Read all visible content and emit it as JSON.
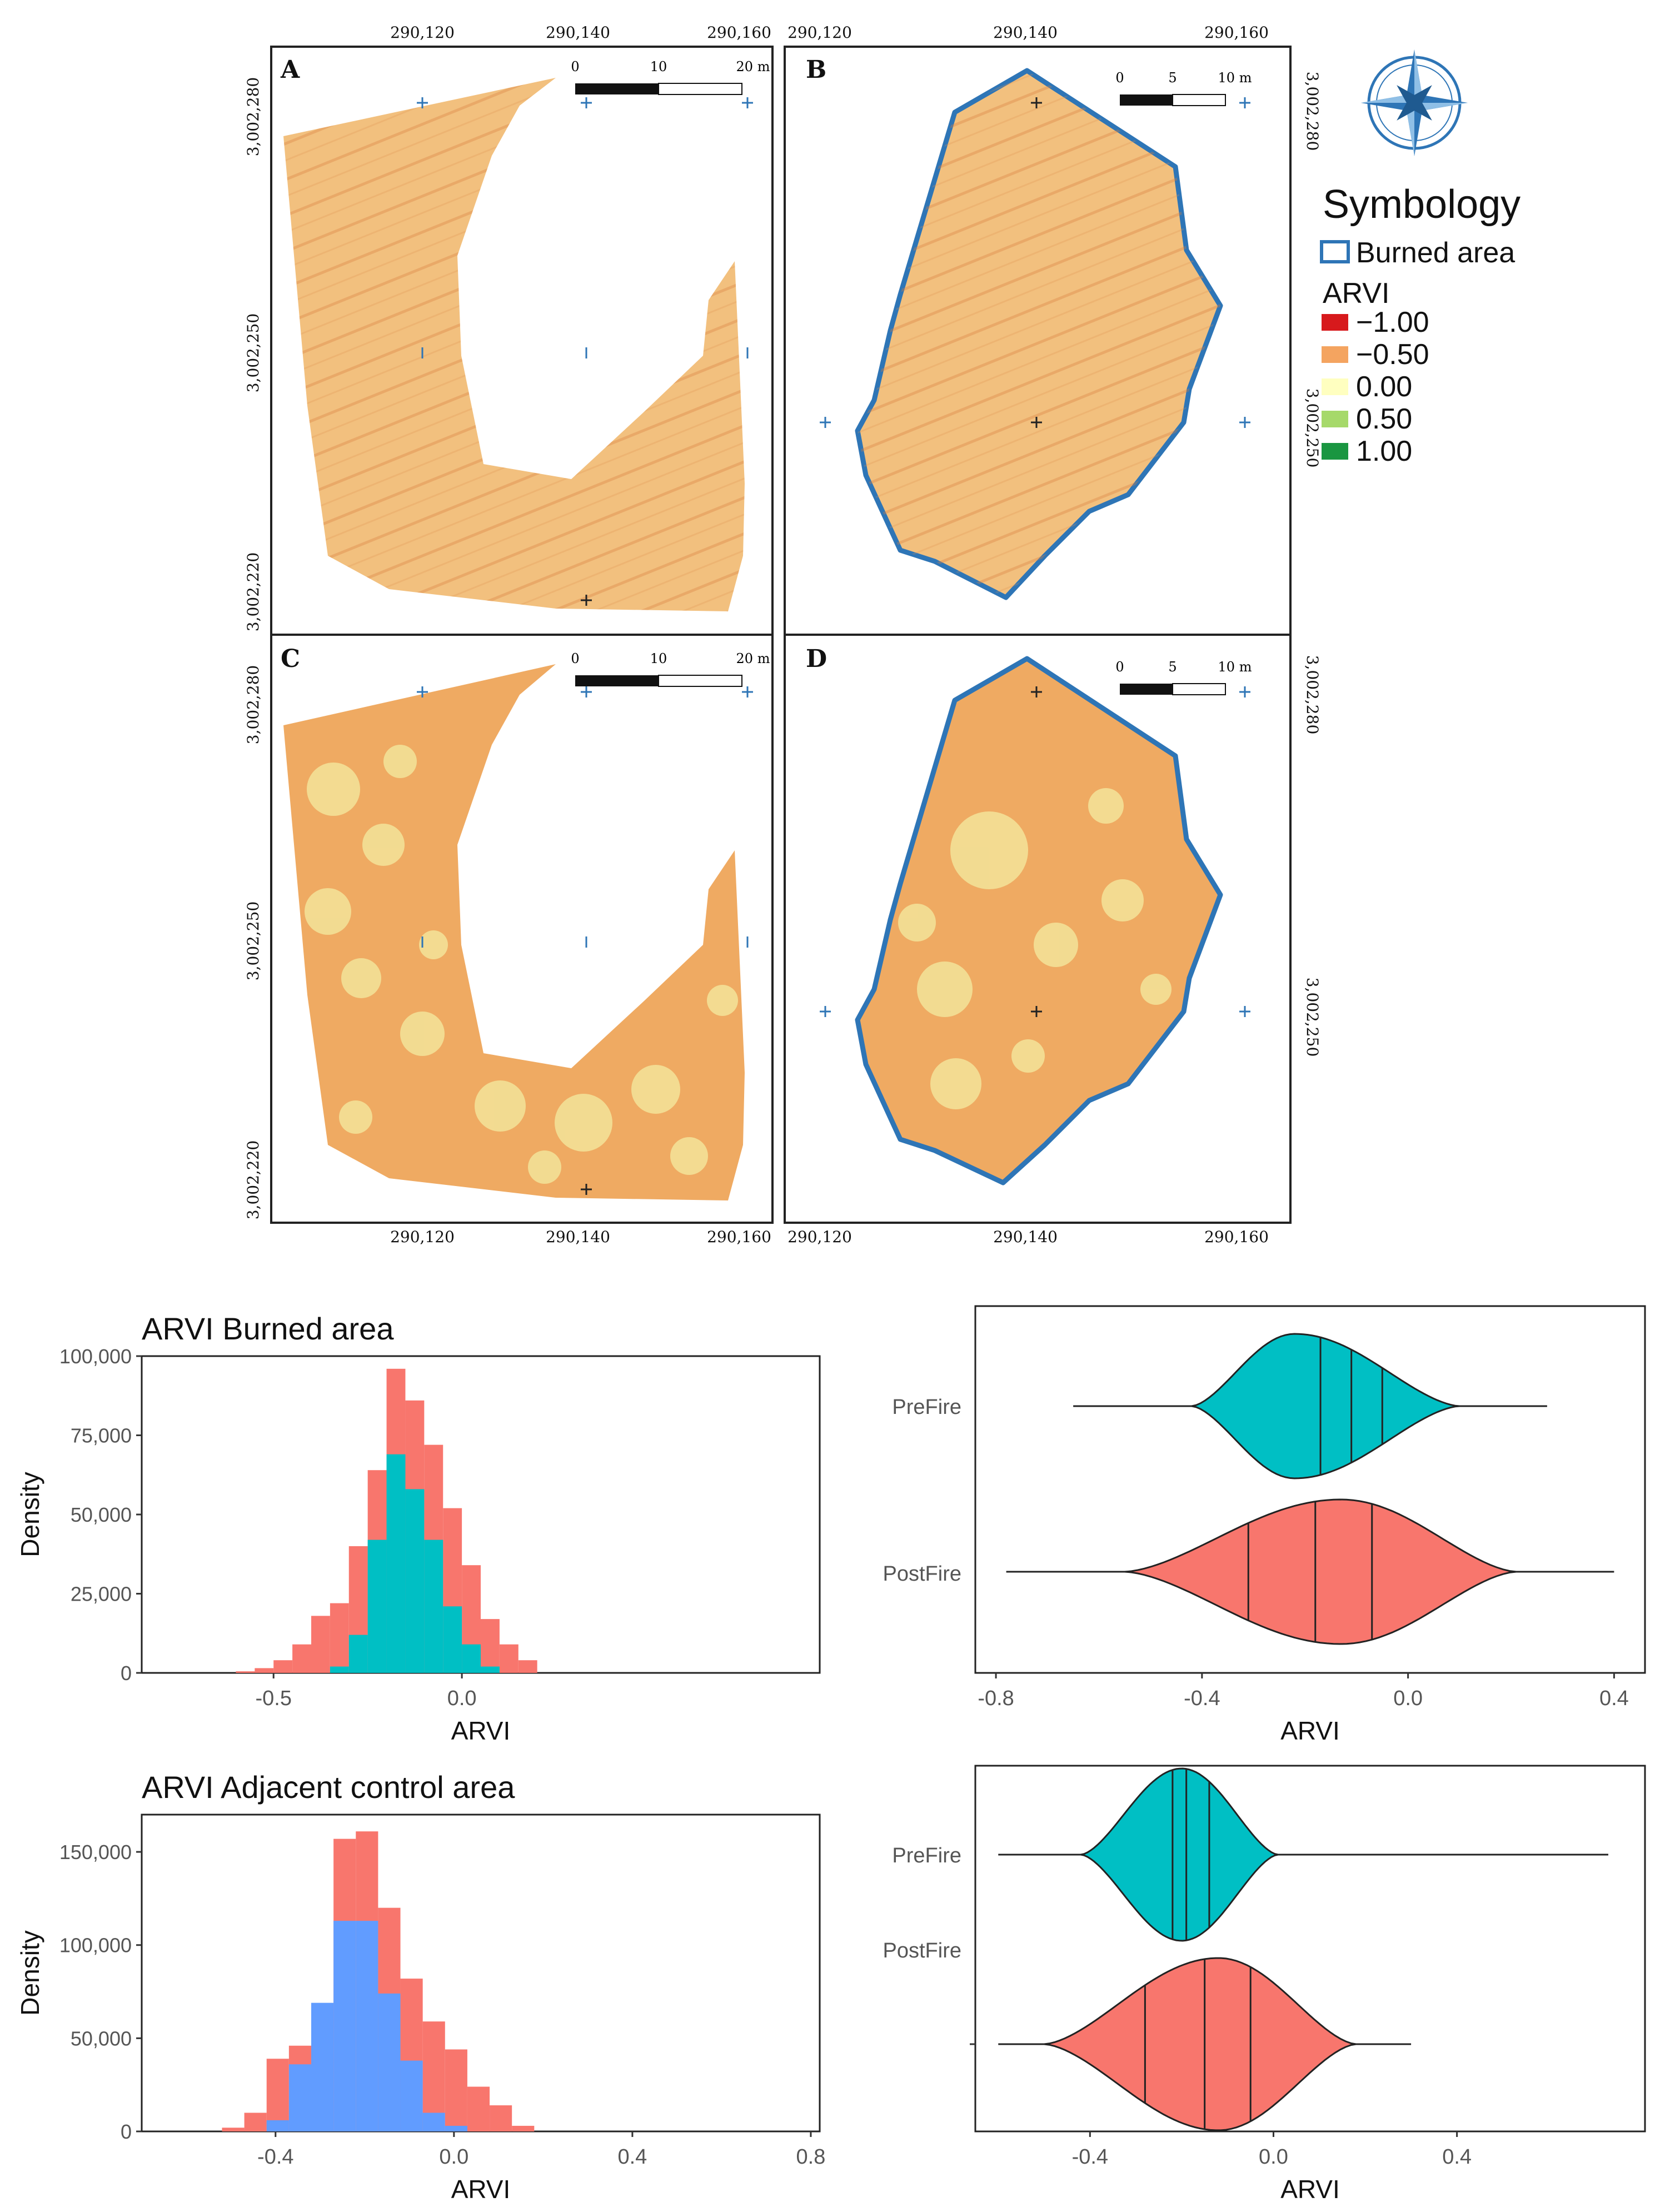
{
  "maps": {
    "panels": [
      {
        "label": "A",
        "scale_ticks": [
          "0",
          "10",
          "20 m"
        ]
      },
      {
        "label": "B",
        "scale_ticks": [
          "0",
          "5",
          "10 m"
        ]
      },
      {
        "label": "C",
        "scale_ticks": [
          "0",
          "10",
          "20 m"
        ]
      },
      {
        "label": "D",
        "scale_ticks": [
          "0",
          "5",
          "10 m"
        ]
      }
    ],
    "x_ticks_left": [
      "290,120",
      "290,140",
      "290,160"
    ],
    "x_ticks_right": [
      "290,120",
      "290,140",
      "290,160"
    ],
    "y_ticks_left_top": [
      "3,002,280",
      "3,002,250",
      "3,002,220"
    ],
    "y_ticks_left_bottom": [
      "3,002,280",
      "3,002,250",
      "3,002,220"
    ],
    "y_ticks_right_top": [
      "3,002,280",
      "3,002,250"
    ],
    "y_ticks_right_bottom": [
      "3,002,280",
      "3,002,250"
    ],
    "colors": {
      "outline": "#2e75b6",
      "pre_fire_fill": "#f2c07e",
      "post_fire_fill": "#efaa62",
      "patch": "#f3e49a"
    }
  },
  "compass": {
    "icon": "compass-rose-icon",
    "color": "#2e75b6"
  },
  "legend": {
    "title": "Symbology",
    "outline_label": "Burned area",
    "ramp_title": "ARVI",
    "items": [
      {
        "label": "−1.00",
        "color": "#d7191c"
      },
      {
        "label": "−0.50",
        "color": "#f4a460"
      },
      {
        "label": "0.00",
        "color": "#ffffc0"
      },
      {
        "label": "0.50",
        "color": "#a6d96a"
      },
      {
        "label": "1.00",
        "color": "#1a9641"
      }
    ]
  },
  "chart_data": [
    {
      "type": "bar",
      "subtype": "histogram",
      "title": "ARVI Burned area",
      "xlabel": "ARVI",
      "ylabel": "Density",
      "xlim": [
        -0.85,
        0.95
      ],
      "ylim": [
        0,
        100000
      ],
      "x_ticks": [
        -0.5,
        0.0
      ],
      "x_tick_labels": [
        "-0.5",
        "0.0"
      ],
      "y_ticks": [
        0,
        25000,
        50000,
        75000,
        100000
      ],
      "y_tick_labels": [
        "0",
        "25,000",
        "50,000",
        "75,000",
        "100,000"
      ],
      "bin_edges": [
        -0.6,
        -0.55,
        -0.5,
        -0.45,
        -0.4,
        -0.35,
        -0.3,
        -0.25,
        -0.2,
        -0.15,
        -0.1,
        -0.05,
        0.0,
        0.05,
        0.1,
        0.15,
        0.2
      ],
      "series": [
        {
          "color": "#f8766d",
          "values": [
            500,
            1500,
            4000,
            9000,
            18000,
            22000,
            40000,
            64000,
            96000,
            86000,
            72000,
            52000,
            34000,
            17000,
            9000,
            4000
          ]
        },
        {
          "color": "#00bfc4",
          "values": [
            0,
            0,
            0,
            0,
            0,
            2000,
            12000,
            42000,
            69000,
            58000,
            42000,
            21000,
            9000,
            2000,
            0,
            0
          ]
        }
      ],
      "grid": false
    },
    {
      "type": "violin",
      "xlabel": "ARVI",
      "categories": [
        "PreFire",
        "PostFire"
      ],
      "xlim": [
        -0.84,
        0.46
      ],
      "x_ticks": [
        -0.8,
        -0.4,
        0.0,
        0.4
      ],
      "x_tick_labels": [
        "-0.8",
        "-0.4",
        "0.0",
        "0.4"
      ],
      "series": [
        {
          "category": "PreFire",
          "color": "#00bfc4",
          "min": -0.65,
          "max": 0.27,
          "quartiles": [
            -0.17,
            -0.11,
            -0.05
          ],
          "body_range": [
            -0.42,
            0.1
          ],
          "peak": -0.22
        },
        {
          "category": "PostFire",
          "color": "#f8766d",
          "min": -0.78,
          "max": 0.4,
          "quartiles": [
            -0.31,
            -0.18,
            -0.07
          ],
          "body_range": [
            -0.55,
            0.21
          ],
          "peak": -0.13
        }
      ]
    },
    {
      "type": "bar",
      "subtype": "histogram",
      "title": "ARVI Adjacent control area",
      "xlabel": "ARVI",
      "ylabel": "Density",
      "xlim": [
        -0.7,
        0.82
      ],
      "ylim": [
        0,
        170000
      ],
      "x_ticks": [
        -0.4,
        0.0,
        0.4,
        0.8
      ],
      "x_tick_labels": [
        "-0.4",
        "0.0",
        "0.4",
        "0.8"
      ],
      "y_ticks": [
        0,
        50000,
        100000,
        150000
      ],
      "y_tick_labels": [
        "0",
        "50,000",
        "100,000",
        "150,000"
      ],
      "bin_edges": [
        -0.52,
        -0.47,
        -0.42,
        -0.37,
        -0.32,
        -0.27,
        -0.22,
        -0.17,
        -0.12,
        -0.07,
        -0.02,
        0.03,
        0.08,
        0.13,
        0.18
      ],
      "series": [
        {
          "color": "#f8766d",
          "values": [
            2000,
            10000,
            39000,
            46000,
            67000,
            157000,
            161000,
            120000,
            82000,
            59000,
            44000,
            24000,
            14000,
            3000
          ]
        },
        {
          "color": "#619cff",
          "values": [
            0,
            0,
            6000,
            36000,
            69000,
            113000,
            113000,
            74000,
            38000,
            10000,
            3000,
            0,
            0,
            0
          ]
        }
      ],
      "grid": false
    },
    {
      "type": "violin",
      "xlabel": "ARVI",
      "categories": [
        "PreFire",
        "PostFire"
      ],
      "xlim": [
        -0.65,
        0.81
      ],
      "x_ticks": [
        -0.4,
        0.0,
        0.4
      ],
      "x_tick_labels": [
        "-0.4",
        "0.0",
        "0.4"
      ],
      "series": [
        {
          "category": "PreFire",
          "color": "#00bfc4",
          "min": -0.6,
          "max": 0.73,
          "quartiles": [
            -0.22,
            -0.19,
            -0.14
          ],
          "body_range": [
            -0.42,
            0.01
          ],
          "peak": -0.2
        },
        {
          "category": "PostFire",
          "color": "#f8766d",
          "min": -0.6,
          "max": 0.3,
          "quartiles": [
            -0.28,
            -0.15,
            -0.05
          ],
          "body_range": [
            -0.5,
            0.18
          ],
          "peak": -0.12
        }
      ]
    }
  ]
}
